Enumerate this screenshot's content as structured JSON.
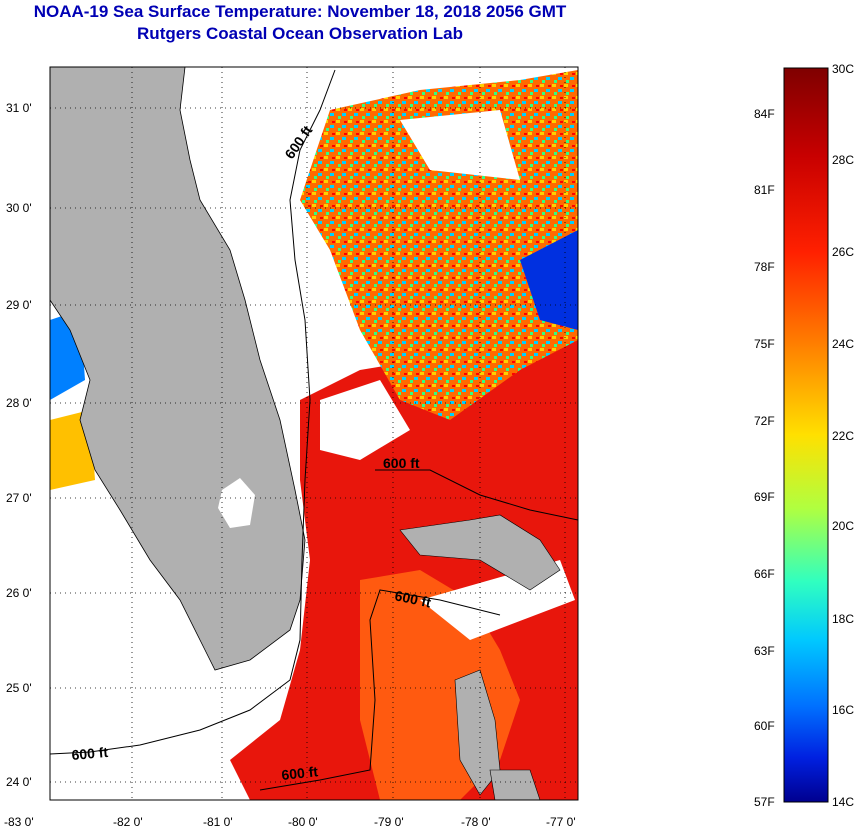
{
  "title": {
    "line1": "NOAA-19 Sea Surface Temperature:  November 18, 2018 2056 GMT",
    "line2": "Rutgers Coastal Ocean Observation Lab"
  },
  "map": {
    "lat_labels": [
      "31 0'",
      "30 0'",
      "29 0'",
      "28 0'",
      "27 0'",
      "26 0'",
      "25 0'",
      "24 0'"
    ],
    "lon_labels": [
      "-83 0'",
      "-82 0'",
      "-81 0'",
      "-80 0'",
      "-79 0'",
      "-78 0'",
      "-77 0'"
    ],
    "contour_labels": [
      "600 ft",
      "600 ft",
      "600 ft",
      "600 ft",
      "600 ft"
    ],
    "colors": {
      "land": "#b0b0b0",
      "cloud": "#ffffff",
      "coast": "#000000"
    }
  },
  "colorbar": {
    "celsius": [
      "30C",
      "28C",
      "26C",
      "24C",
      "22C",
      "20C",
      "18C",
      "16C",
      "14C"
    ],
    "fahrenheit": [
      "84F",
      "81F",
      "78F",
      "75F",
      "72F",
      "69F",
      "66F",
      "63F",
      "60F",
      "57F"
    ],
    "gradient": [
      "#7f0000",
      "#d00000",
      "#ff3000",
      "#ff8000",
      "#ffd000",
      "#d0ff30",
      "#60ffa0",
      "#00e0ff",
      "#0090ff",
      "#0030ff",
      "#00009f"
    ]
  }
}
